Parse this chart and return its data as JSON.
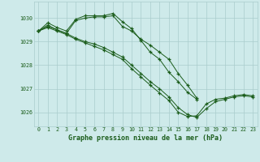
{
  "title": "Graphe pression niveau de la mer (hPa)",
  "background_color": "#ceeaea",
  "plot_bg_color": "#ceeaea",
  "grid_color": "#aacccc",
  "line_color": "#1a5c1a",
  "xlim": [
    -0.5,
    23.5
  ],
  "ylim": [
    1025.4,
    1030.7
  ],
  "yticks": [
    1026,
    1027,
    1028,
    1029,
    1030
  ],
  "xticks": [
    0,
    1,
    2,
    3,
    4,
    5,
    6,
    7,
    8,
    9,
    10,
    11,
    12,
    13,
    14,
    15,
    16,
    17,
    18,
    19,
    20,
    21,
    22,
    23
  ],
  "series": [
    [
      1029.45,
      1029.8,
      1029.6,
      1029.45,
      1029.95,
      1030.1,
      1030.1,
      1030.1,
      1030.2,
      1029.85,
      1029.55,
      1029.05,
      1028.55,
      1028.25,
      1027.7,
      1027.3,
      1026.85,
      1026.55,
      null,
      null,
      null,
      null,
      null,
      null
    ],
    [
      1029.45,
      1029.65,
      1029.5,
      1029.35,
      1029.15,
      1029.0,
      1028.9,
      1028.75,
      1028.55,
      1028.35,
      1028.0,
      1027.65,
      1027.3,
      1027.0,
      1026.65,
      1026.2,
      1025.9,
      1025.78,
      1026.15,
      1026.45,
      1026.55,
      1026.65,
      1026.7,
      1026.65
    ],
    [
      1029.45,
      1029.6,
      1029.45,
      1029.3,
      1029.1,
      1028.95,
      1028.8,
      1028.65,
      1028.45,
      1028.25,
      1027.85,
      1027.5,
      1027.15,
      1026.82,
      1026.5,
      1026.0,
      1025.82,
      1025.85,
      1026.35,
      1026.55,
      1026.6,
      1026.7,
      1026.75,
      1026.7
    ],
    [
      1029.45,
      1029.7,
      1029.5,
      1029.35,
      1029.9,
      1030.0,
      1030.05,
      1030.05,
      1030.1,
      1029.65,
      1029.45,
      1029.1,
      1028.85,
      1028.55,
      1028.25,
      1027.65,
      1027.15,
      1026.6,
      null,
      null,
      null,
      null,
      null,
      null
    ]
  ]
}
